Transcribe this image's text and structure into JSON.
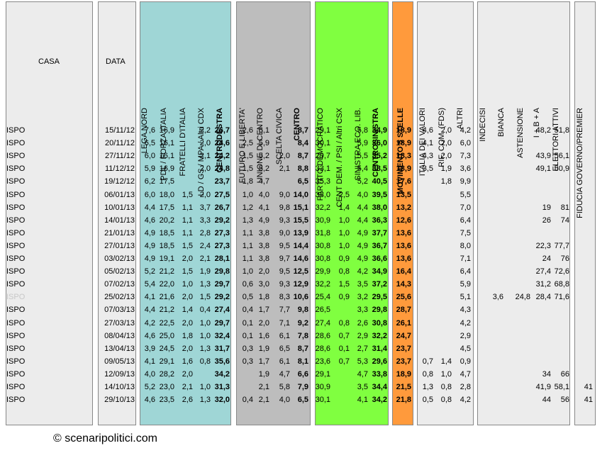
{
  "headers": {
    "casa": "CASA",
    "data": "DATA",
    "columns": [
      "LEGA NORD",
      "PDL / FORZA ITALIA",
      "FRATELLI D'ITALIA",
      "LD / GS / MPA / Altri CDX",
      "CENTRODESTRA",
      "FUTURO E LIBERTA'",
      "UNIONE DI CENTRO",
      "SCELTA CIVICA",
      "CENTRO",
      "PARTITO DEMOCRATICO",
      "CENT DEM. / PSI / Altri CSX",
      "SINISTRA ECO. LIB.",
      "CENTROSINISTRA",
      "MOVIMENTO 5 STELLE",
      "ITALIA DEI VALORI",
      "RIF. COM. (FDS)",
      "ALTRI",
      "INDECISI",
      "BIANCA",
      "ASTENSIONE",
      "I + B + A",
      "ELETTORI ATTIVI",
      "FIDUCIA GOVERNO/PREMIER"
    ]
  },
  "rows": [
    {
      "casa": "ISPO",
      "data": "15/11/12",
      "v": [
        "7,6",
        "16,9",
        "",
        "2,2",
        "26,7",
        "2,6",
        "6,1",
        "",
        "8,7",
        "29,1",
        "",
        "5,8",
        "34,9",
        "18,9",
        "4,6",
        "2,0",
        "4,2",
        "",
        "",
        "",
        "48,2",
        "51,8",
        ""
      ]
    },
    {
      "casa": "ISPO",
      "data": "20/11/12",
      "v": [
        "6,5",
        "16,1",
        "",
        "2,0",
        "24,6",
        "2,5",
        "5,9",
        "",
        "8,4",
        "30,1",
        "",
        "5,9",
        "36,0",
        "18,9",
        "4,1",
        "2,0",
        "6,0",
        "",
        "",
        "",
        "",
        "",
        ""
      ]
    },
    {
      "casa": "ISPO",
      "data": "27/11/12",
      "v": [
        "6,0",
        "16,1",
        "",
        "2,1",
        "24,2",
        "1,5",
        "5,2",
        "2,0",
        "8,7",
        "29,7",
        "",
        "5,5",
        "35,2",
        "18,3",
        "4,3",
        "2,0",
        "7,3",
        "",
        "",
        "",
        "43,9",
        "56,1",
        ""
      ]
    },
    {
      "casa": "ISPO",
      "data": "11/12/12",
      "v": [
        "5,9",
        "16,9",
        "",
        "2,0",
        "24,8",
        "1,5",
        "5,2",
        "2,1",
        "8,8",
        "33,1",
        "",
        "5,4",
        "38,5",
        "18,9",
        "3,5",
        "1,9",
        "3,6",
        "",
        "",
        "",
        "49,1",
        "50,9",
        ""
      ]
    },
    {
      "casa": "ISPO",
      "data": "19/12/12",
      "v": [
        "6,2",
        "17,5",
        "",
        "",
        "23,7",
        "1,8",
        "4,7",
        "",
        "6,5",
        "35,3",
        "",
        "5,2",
        "40,5",
        "17,6",
        "",
        "1,8",
        "9,9",
        "",
        "",
        "",
        "",
        "",
        ""
      ]
    },
    {
      "casa": "ISPO",
      "data": "06/01/13",
      "v": [
        "6,0",
        "18,0",
        "1,5",
        "2,0",
        "27,5",
        "1,0",
        "4,0",
        "9,0",
        "14,0",
        "33,0",
        "2,5",
        "4,0",
        "39,5",
        "13,5",
        "",
        "",
        "5,5",
        "",
        "",
        "",
        "",
        "",
        ""
      ]
    },
    {
      "casa": "ISPO",
      "data": "10/01/13",
      "v": [
        "4,4",
        "17,5",
        "1,1",
        "3,7",
        "26,7",
        "1,2",
        "4,1",
        "9,8",
        "15,1",
        "32,2",
        "1,4",
        "4,4",
        "38,0",
        "13,2",
        "",
        "",
        "7,0",
        "",
        "",
        "",
        "19",
        "81",
        ""
      ]
    },
    {
      "casa": "ISPO",
      "data": "14/01/13",
      "v": [
        "4,6",
        "20,2",
        "1,1",
        "3,3",
        "29,2",
        "1,3",
        "4,9",
        "9,3",
        "15,5",
        "30,9",
        "1,0",
        "4,4",
        "36,3",
        "12,6",
        "",
        "",
        "6,4",
        "",
        "",
        "",
        "26",
        "74",
        ""
      ]
    },
    {
      "casa": "ISPO",
      "data": "21/01/13",
      "v": [
        "4,9",
        "18,5",
        "1,1",
        "2,8",
        "27,3",
        "1,1",
        "3,8",
        "9,0",
        "13,9",
        "31,8",
        "1,0",
        "4,9",
        "37,7",
        "13,6",
        "",
        "",
        "7,5",
        "",
        "",
        "",
        "",
        "",
        ""
      ]
    },
    {
      "casa": "ISPO",
      "data": "27/01/13",
      "v": [
        "4,9",
        "18,5",
        "1,5",
        "2,4",
        "27,3",
        "1,1",
        "3,8",
        "9,5",
        "14,4",
        "30,8",
        "1,0",
        "4,9",
        "36,7",
        "13,6",
        "",
        "",
        "8,0",
        "",
        "",
        "",
        "22,3",
        "77,7",
        ""
      ]
    },
    {
      "casa": "ISPO",
      "data": "03/02/13",
      "v": [
        "4,9",
        "19,1",
        "2,0",
        "2,1",
        "28,1",
        "1,1",
        "3,8",
        "9,7",
        "14,6",
        "30,8",
        "0,9",
        "4,9",
        "36,6",
        "13,6",
        "",
        "",
        "7,1",
        "",
        "",
        "",
        "24",
        "76",
        ""
      ]
    },
    {
      "casa": "ISPO",
      "data": "05/02/13",
      "v": [
        "5,2",
        "21,2",
        "1,5",
        "1,9",
        "29,8",
        "1,0",
        "2,0",
        "9,5",
        "12,5",
        "29,9",
        "0,8",
        "4,2",
        "34,9",
        "16,4",
        "",
        "",
        "6,4",
        "",
        "",
        "",
        "27,4",
        "72,6",
        ""
      ]
    },
    {
      "casa": "ISPO",
      "data": "07/02/13",
      "v": [
        "5,4",
        "22,0",
        "1,0",
        "1,3",
        "29,7",
        "0,6",
        "3,0",
        "9,3",
        "12,9",
        "32,2",
        "1,5",
        "3,5",
        "37,2",
        "14,3",
        "",
        "",
        "5,9",
        "",
        "",
        "",
        "31,2",
        "68,8",
        ""
      ]
    },
    {
      "casa": "ISPO",
      "data": "25/02/13",
      "v": [
        "4,1",
        "21,6",
        "2,0",
        "1,5",
        "29,2",
        "0,5",
        "1,8",
        "8,3",
        "10,6",
        "25,4",
        "0,9",
        "3,2",
        "29,5",
        "25,6",
        "",
        "",
        "5,1",
        "",
        "3,6",
        "24,8",
        "28,4",
        "71,6",
        ""
      ],
      "casa_faded": true
    },
    {
      "casa": "ISPO",
      "data": "07/03/13",
      "v": [
        "4,4",
        "21,2",
        "1,4",
        "0,4",
        "27,4",
        "0,4",
        "1,7",
        "7,7",
        "9,8",
        "26,5",
        "",
        "3,3",
        "29,8",
        "28,7",
        "",
        "",
        "4,3",
        "",
        "",
        "",
        "",
        "",
        ""
      ]
    },
    {
      "casa": "ISPO",
      "data": "27/03/13",
      "v": [
        "4,2",
        "22,5",
        "2,0",
        "1,0",
        "29,7",
        "0,1",
        "2,0",
        "7,1",
        "9,2",
        "27,4",
        "0,8",
        "2,6",
        "30,8",
        "26,1",
        "",
        "",
        "4,2",
        "",
        "",
        "",
        "",
        "",
        ""
      ]
    },
    {
      "casa": "ISPO",
      "data": "08/04/13",
      "v": [
        "4,6",
        "25,0",
        "1,8",
        "1,0",
        "32,4",
        "0,1",
        "1,6",
        "6,1",
        "7,8",
        "28,6",
        "0,7",
        "2,9",
        "32,2",
        "24,7",
        "",
        "",
        "2,9",
        "",
        "",
        "",
        "",
        "",
        ""
      ]
    },
    {
      "casa": "ISPO",
      "data": "13/04/13",
      "v": [
        "3,9",
        "24,5",
        "2,0",
        "1,3",
        "31,7",
        "0,3",
        "1,9",
        "6,5",
        "8,7",
        "28,6",
        "0,1",
        "2,7",
        "31,4",
        "23,7",
        "",
        "",
        "4,5",
        "",
        "",
        "",
        "",
        "",
        ""
      ]
    },
    {
      "casa": "ISPO",
      "data": "09/05/13",
      "v": [
        "4,1",
        "29,1",
        "1,6",
        "0,8",
        "35,6",
        "0,3",
        "1,7",
        "6,1",
        "8,1",
        "23,6",
        "0,7",
        "5,3",
        "29,6",
        "23,7",
        "0,7",
        "1,4",
        "0,9",
        "",
        "",
        "",
        "",
        "",
        ""
      ]
    },
    {
      "casa": "ISPO",
      "data": "12/09/13",
      "v": [
        "4,0",
        "28,2",
        "2,0",
        "",
        "34,2",
        "",
        "1,9",
        "4,7",
        "6,6",
        "29,1",
        "",
        "4,7",
        "33,8",
        "18,9",
        "0,8",
        "1,0",
        "4,7",
        "",
        "",
        "",
        "34",
        "66",
        ""
      ]
    },
    {
      "casa": "ISPO",
      "data": "14/10/13",
      "v": [
        "5,2",
        "23,0",
        "2,1",
        "1,0",
        "31,3",
        "",
        "2,1",
        "5,8",
        "7,9",
        "30,9",
        "",
        "3,5",
        "34,4",
        "21,5",
        "1,3",
        "0,8",
        "2,8",
        "",
        "",
        "",
        "41,9",
        "58,1",
        "41"
      ]
    },
    {
      "casa": "ISPO",
      "data": "29/10/13",
      "v": [
        "4,6",
        "23,5",
        "2,6",
        "1,3",
        "32,0",
        "0,4",
        "2,1",
        "4,0",
        "6,5",
        "30,1",
        "",
        "4,1",
        "34,2",
        "21,8",
        "0,5",
        "0,8",
        "4,2",
        "",
        "",
        "",
        "44",
        "56",
        "41"
      ]
    }
  ],
  "colors": {
    "centrodestra": "#9fd6d6",
    "centro": "#bdbdbd",
    "centrosinistra": "#80ff40",
    "m5s": "#ff9a3c",
    "panel": "#ececec"
  },
  "footer": "© scenaripolitici.com"
}
